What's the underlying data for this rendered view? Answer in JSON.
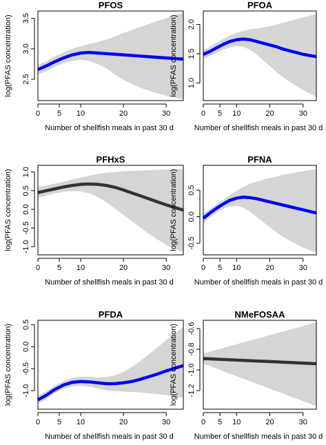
{
  "chart_data": [
    {
      "type": "line",
      "title": "PFOS",
      "xlabel": "Number of shellfish meals in past 30 d",
      "ylabel": "log(PFAS concentration)",
      "xlim": [
        0,
        34
      ],
      "ylim": [
        2.15,
        3.62
      ],
      "xticks": [
        0,
        5,
        10,
        20,
        30
      ],
      "xtick_labels": [
        "0",
        "5",
        "10",
        "20",
        "30"
      ],
      "yticks": [
        2.5,
        3.0,
        3.5
      ],
      "ytick_labels": [
        "2.5",
        "3.0",
        "3.5"
      ],
      "curve_color": "#0000ff",
      "band_color": "#cccccc",
      "x": [
        0,
        2,
        4,
        6,
        8,
        10,
        12,
        14,
        16,
        18,
        20,
        22,
        24,
        26,
        28,
        30,
        32,
        34
      ],
      "y": [
        2.66,
        2.72,
        2.79,
        2.85,
        2.9,
        2.93,
        2.94,
        2.93,
        2.92,
        2.91,
        2.9,
        2.89,
        2.88,
        2.87,
        2.86,
        2.85,
        2.84,
        2.83
      ],
      "lower": [
        2.58,
        2.63,
        2.71,
        2.76,
        2.8,
        2.82,
        2.8,
        2.75,
        2.68,
        2.58,
        2.49,
        2.42,
        2.36,
        2.31,
        2.27,
        2.23,
        2.2,
        2.17
      ],
      "upper": [
        2.73,
        2.8,
        2.88,
        2.94,
        3.0,
        3.04,
        3.08,
        3.11,
        3.15,
        3.2,
        3.26,
        3.31,
        3.36,
        3.41,
        3.46,
        3.5,
        3.55,
        3.6
      ]
    },
    {
      "type": "line",
      "title": "PFOA",
      "xlabel": "Number of shellfish meals in past 30 d",
      "ylabel": "log(PFAS concentration)",
      "xlim": [
        0,
        34
      ],
      "ylim": [
        0.7,
        2.23
      ],
      "xticks": [
        0,
        5,
        10,
        20,
        30
      ],
      "xtick_labels": [
        "0",
        "5",
        "10",
        "20",
        "30"
      ],
      "yticks": [
        1.0,
        1.5,
        2.0
      ],
      "ytick_labels": [
        "1.0",
        "1.5",
        "2.0"
      ],
      "curve_color": "#0000ff",
      "band_color": "#cccccc",
      "x": [
        0,
        2,
        4,
        6,
        8,
        10,
        12,
        14,
        16,
        18,
        20,
        22,
        24,
        26,
        28,
        30,
        32,
        34
      ],
      "y": [
        1.49,
        1.54,
        1.6,
        1.66,
        1.71,
        1.74,
        1.75,
        1.74,
        1.71,
        1.68,
        1.65,
        1.62,
        1.58,
        1.55,
        1.52,
        1.49,
        1.47,
        1.45
      ],
      "lower": [
        1.42,
        1.46,
        1.52,
        1.57,
        1.61,
        1.63,
        1.62,
        1.57,
        1.49,
        1.39,
        1.29,
        1.19,
        1.1,
        1.02,
        0.95,
        0.88,
        0.82,
        0.76
      ],
      "upper": [
        1.56,
        1.62,
        1.69,
        1.75,
        1.81,
        1.86,
        1.89,
        1.92,
        1.93,
        1.95,
        1.97,
        2.0,
        2.03,
        2.06,
        2.09,
        2.12,
        2.15,
        2.18
      ]
    },
    {
      "type": "line",
      "title": "PFHxS",
      "xlabel": "Number of shellfish meals in past 30 d",
      "ylabel": "log(PFAS concentration)",
      "xlim": [
        0,
        34
      ],
      "ylim": [
        -1.22,
        1.18
      ],
      "xticks": [
        0,
        5,
        10,
        20,
        30
      ],
      "xtick_labels": [
        "0",
        "5",
        "10",
        "20",
        "30"
      ],
      "yticks": [
        -1.0,
        -0.5,
        0.0,
        0.5,
        1.0
      ],
      "ytick_labels": [
        "-1.0",
        "-0.5",
        "0.0",
        "0.5",
        "1.0"
      ],
      "curve_color": "#333333",
      "band_color": "#cccccc",
      "x": [
        0,
        2,
        4,
        6,
        8,
        10,
        12,
        14,
        16,
        18,
        20,
        22,
        24,
        26,
        28,
        30,
        32,
        34
      ],
      "y": [
        0.45,
        0.5,
        0.55,
        0.6,
        0.64,
        0.67,
        0.68,
        0.67,
        0.64,
        0.59,
        0.52,
        0.44,
        0.36,
        0.28,
        0.2,
        0.12,
        0.05,
        -0.02
      ],
      "lower": [
        0.31,
        0.37,
        0.43,
        0.47,
        0.49,
        0.48,
        0.43,
        0.33,
        0.19,
        0.02,
        -0.15,
        -0.32,
        -0.49,
        -0.66,
        -0.81,
        -0.95,
        -1.06,
        -1.15
      ],
      "upper": [
        0.6,
        0.64,
        0.69,
        0.74,
        0.8,
        0.85,
        0.9,
        0.95,
        0.98,
        1.0,
        1.02,
        1.03,
        1.04,
        1.05,
        1.06,
        1.07,
        1.07,
        1.08
      ]
    },
    {
      "type": "line",
      "title": "PFNA",
      "xlabel": "Number of shellfish meals in past 30 d",
      "ylabel": "log(PFAS concentration)",
      "xlim": [
        0,
        34
      ],
      "ylim": [
        -0.72,
        0.97
      ],
      "xticks": [
        0,
        5,
        10,
        20,
        30
      ],
      "xtick_labels": [
        "0",
        "5",
        "10",
        "20",
        "30"
      ],
      "yticks": [
        -0.5,
        0.0,
        0.5
      ],
      "ytick_labels": [
        "-0.5",
        "0.0",
        "0.5"
      ],
      "curve_color": "#0000ff",
      "band_color": "#cccccc",
      "x": [
        0,
        2,
        4,
        6,
        8,
        10,
        12,
        14,
        16,
        18,
        20,
        22,
        24,
        26,
        28,
        30,
        32,
        34
      ],
      "y": [
        -0.03,
        0.07,
        0.16,
        0.24,
        0.31,
        0.35,
        0.37,
        0.36,
        0.34,
        0.31,
        0.28,
        0.25,
        0.22,
        0.19,
        0.16,
        0.13,
        0.1,
        0.07
      ],
      "lower": [
        -0.12,
        -0.01,
        0.08,
        0.15,
        0.19,
        0.2,
        0.17,
        0.1,
        0.0,
        -0.1,
        -0.2,
        -0.29,
        -0.38,
        -0.45,
        -0.52,
        -0.58,
        -0.63,
        -0.67
      ],
      "upper": [
        0.06,
        0.15,
        0.24,
        0.32,
        0.41,
        0.49,
        0.56,
        0.62,
        0.66,
        0.7,
        0.73,
        0.76,
        0.79,
        0.81,
        0.84,
        0.86,
        0.88,
        0.9
      ]
    },
    {
      "type": "line",
      "title": "PFDA",
      "xlabel": "Number of shellfish meals in past 30 d",
      "ylabel": "log(PFAS concentration)",
      "xlim": [
        0,
        34
      ],
      "ylim": [
        -1.42,
        0.6
      ],
      "xticks": [
        0,
        5,
        10,
        20,
        30
      ],
      "xtick_labels": [
        "0",
        "5",
        "10",
        "20",
        "30"
      ],
      "yticks": [
        -1.0,
        -0.5,
        0.0,
        0.5
      ],
      "ytick_labels": [
        "-1.0",
        "-0.5",
        "0.0",
        "0.5"
      ],
      "curve_color": "#0000ff",
      "band_color": "#cccccc",
      "x": [
        0,
        2,
        4,
        6,
        8,
        10,
        12,
        14,
        16,
        18,
        20,
        22,
        24,
        26,
        28,
        30,
        32,
        34
      ],
      "y": [
        -1.21,
        -1.1,
        -0.97,
        -0.87,
        -0.81,
        -0.79,
        -0.8,
        -0.82,
        -0.84,
        -0.84,
        -0.82,
        -0.79,
        -0.74,
        -0.68,
        -0.62,
        -0.55,
        -0.49,
        -0.43
      ],
      "lower": [
        -1.3,
        -1.19,
        -1.05,
        -0.95,
        -0.9,
        -0.89,
        -0.91,
        -0.95,
        -0.99,
        -1.01,
        -1.02,
        -1.03,
        -1.04,
        -1.06,
        -1.08,
        -1.1,
        -1.13,
        -1.16
      ],
      "upper": [
        -1.12,
        -1.01,
        -0.88,
        -0.78,
        -0.71,
        -0.68,
        -0.68,
        -0.7,
        -0.69,
        -0.65,
        -0.57,
        -0.46,
        -0.32,
        -0.17,
        -0.01,
        0.15,
        0.3,
        0.45
      ]
    },
    {
      "type": "line",
      "title": "NMeFOSAA",
      "xlabel": "Number of shellfish meals in past 30 d",
      "ylabel": "log(PFAS concentration)",
      "xlim": [
        0,
        34
      ],
      "ylim": [
        -1.38,
        -0.52
      ],
      "xticks": [
        0,
        5,
        10,
        20,
        30
      ],
      "xtick_labels": [
        "0",
        "5",
        "10",
        "20",
        "30"
      ],
      "yticks": [
        -1.2,
        -1.0,
        -0.8,
        -0.6
      ],
      "ytick_labels": [
        "-1.2",
        "-1.0",
        "-0.8",
        "-0.6"
      ],
      "curve_color": "#333333",
      "band_color": "#cccccc",
      "x": [
        0,
        34
      ],
      "y": [
        -0.89,
        -0.94
      ],
      "lower": [
        -0.94,
        -1.35
      ],
      "upper": [
        -0.84,
        -0.54
      ]
    }
  ]
}
